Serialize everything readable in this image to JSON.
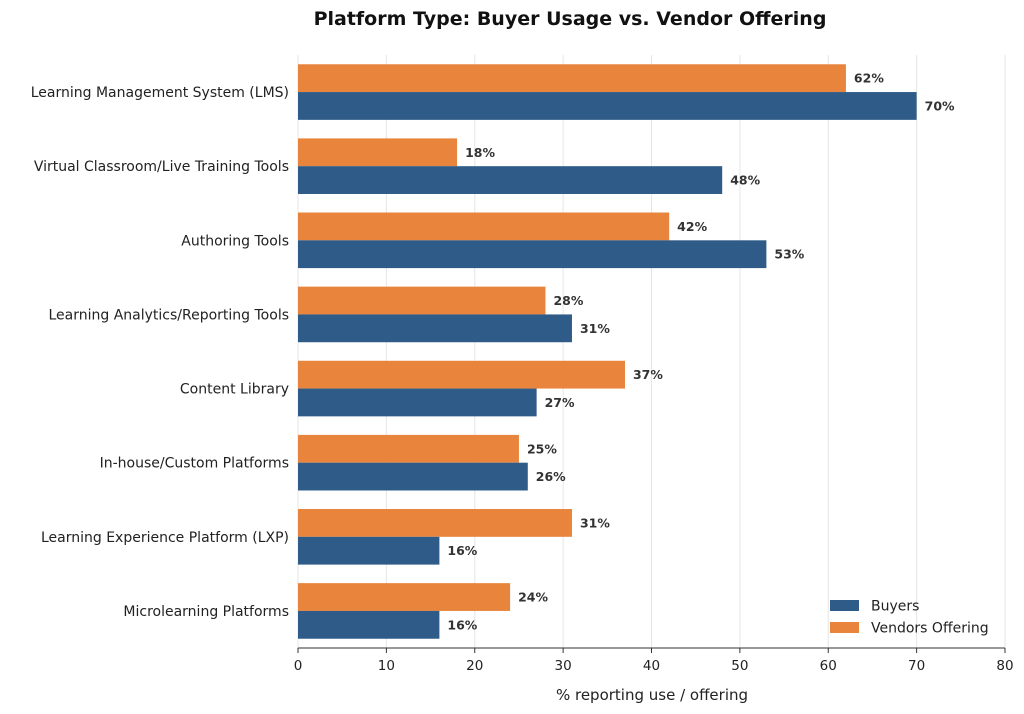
{
  "chart_data": {
    "type": "bar",
    "orientation": "horizontal",
    "title": "Platform Type: Buyer Usage vs. Vendor Offering",
    "xlabel": "% reporting use / offering",
    "ylabel": "",
    "xlim": [
      0,
      80
    ],
    "xticks": [
      0,
      10,
      20,
      30,
      40,
      50,
      60,
      70,
      80
    ],
    "grid": "vertical",
    "legend_position": "bottom-right",
    "value_label_suffix": "%",
    "categories": [
      "Learning Management System (LMS)",
      "Virtual Classroom/Live Training Tools",
      "Authoring Tools",
      "Learning Analytics/Reporting Tools",
      "Content Library",
      "In-house/Custom Platforms",
      "Learning Experience Platform (LXP)",
      "Microlearning Platforms"
    ],
    "series": [
      {
        "name": "Buyers",
        "color": "#2e5b87",
        "values": [
          70,
          48,
          53,
          31,
          27,
          26,
          16,
          16
        ]
      },
      {
        "name": "Vendors Offering",
        "color": "#e8843c",
        "values": [
          62,
          18,
          42,
          28,
          37,
          25,
          31,
          24
        ]
      }
    ]
  }
}
